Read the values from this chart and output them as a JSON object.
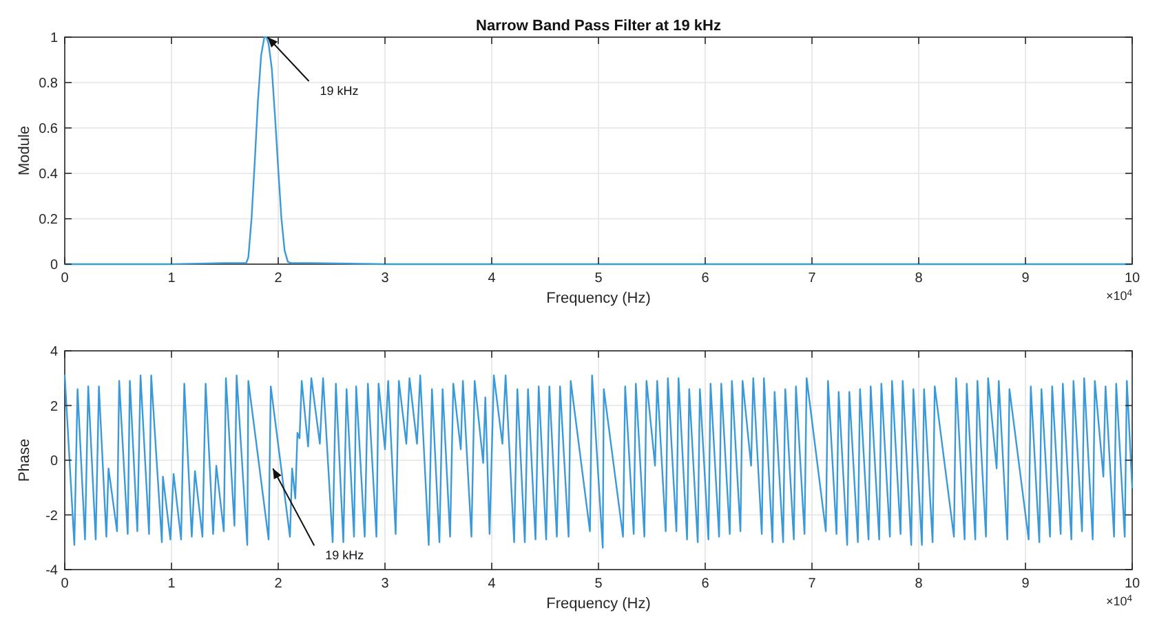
{
  "chart_data": [
    {
      "type": "line",
      "title": "Narrow Band Pass Filter at 19 kHz",
      "xlabel": "Frequency (Hz)",
      "ylabel": "Module",
      "x": [
        0,
        0.5,
        1,
        1.5,
        1.7,
        1.72,
        1.75,
        1.78,
        1.81,
        1.84,
        1.87,
        1.89,
        1.91,
        1.94,
        1.97,
        2.0,
        2.03,
        2.06,
        2.09,
        2.12,
        2.3,
        3,
        4,
        5,
        6,
        7,
        8,
        9,
        10
      ],
      "series": [
        {
          "color": "#3a9ad9",
          "values": [
            0,
            0,
            0,
            0.005,
            0.005,
            0.03,
            0.2,
            0.45,
            0.72,
            0.92,
            1.0,
            1.0,
            0.97,
            0.86,
            0.65,
            0.42,
            0.2,
            0.06,
            0.01,
            0.005,
            0.005,
            0,
            0,
            0,
            0,
            0,
            0,
            0,
            0
          ]
        }
      ],
      "xlim": [
        0,
        10
      ],
      "xticks": [
        0,
        1,
        2,
        3,
        4,
        5,
        6,
        7,
        8,
        9,
        10
      ],
      "ylim": [
        0,
        1
      ],
      "yticks": [
        0,
        0.2,
        0.4,
        0.6,
        0.8,
        1
      ],
      "grid": true,
      "line_style": "solid",
      "annotations": [
        {
          "text": "19 kHz",
          "x": 1.9,
          "y": 1
        },
        "×10$^{4}$"
      ]
    },
    {
      "type": "line",
      "xlabel": "Frequency (Hz)",
      "ylabel": "Phase",
      "x": [
        0,
        0.09,
        0.12,
        0.19,
        0.22,
        0.29,
        0.32,
        0.39,
        0.41,
        0.49,
        0.51,
        0.59,
        0.61,
        0.68,
        0.71,
        0.79,
        0.81,
        0.91,
        0.92,
        0.99,
        1.02,
        1.09,
        1.12,
        1.19,
        1.22,
        1.29,
        1.32,
        1.39,
        1.42,
        1.49,
        1.51,
        1.59,
        1.61,
        1.71,
        1.72,
        1.91,
        1.93,
        2.11,
        2.13,
        2.16,
        2.18,
        2.2,
        2.22,
        2.28,
        2.31,
        2.39,
        2.42,
        2.51,
        2.54,
        2.61,
        2.64,
        2.71,
        2.73,
        2.81,
        2.84,
        2.92,
        2.94,
        3.0,
        3.03,
        3.1,
        3.13,
        3.2,
        3.23,
        3.3,
        3.33,
        3.41,
        3.44,
        3.51,
        3.54,
        3.61,
        3.64,
        3.71,
        3.73,
        3.81,
        3.84,
        3.92,
        3.94,
        3.98,
        4.02,
        4.1,
        4.13,
        4.21,
        4.24,
        4.31,
        4.34,
        4.41,
        4.44,
        4.51,
        4.54,
        4.61,
        4.64,
        4.72,
        4.74,
        4.92,
        4.94,
        5.04,
        5.05,
        5.23,
        5.25,
        5.33,
        5.35,
        5.43,
        5.45,
        5.53,
        5.55,
        5.63,
        5.65,
        5.73,
        5.75,
        5.83,
        5.85,
        5.93,
        5.95,
        6.03,
        6.05,
        6.13,
        6.15,
        6.23,
        6.25,
        6.33,
        6.35,
        6.43,
        6.45,
        6.53,
        6.55,
        6.63,
        6.65,
        6.73,
        6.75,
        6.83,
        6.85,
        6.93,
        6.95,
        7.13,
        7.15,
        7.23,
        7.25,
        7.33,
        7.35,
        7.43,
        7.45,
        7.53,
        7.55,
        7.63,
        7.65,
        7.73,
        7.75,
        7.83,
        7.85,
        7.93,
        7.95,
        8.03,
        8.05,
        8.13,
        8.15,
        8.33,
        8.35,
        8.43,
        8.45,
        8.53,
        8.55,
        8.63,
        8.65,
        8.73,
        8.75,
        8.83,
        8.85,
        9.03,
        9.05,
        9.13,
        9.15,
        9.23,
        9.25,
        9.33,
        9.35,
        9.43,
        9.45,
        9.53,
        9.55,
        9.63,
        9.65,
        9.73,
        9.75,
        9.83,
        9.85,
        9.93,
        9.95,
        10
      ],
      "series": [
        {
          "color": "#3a9ad9",
          "values": [
            3.1,
            -3.1,
            2.6,
            -2.9,
            2.7,
            -2.9,
            2.7,
            -2.8,
            -0.3,
            -2.6,
            2.9,
            -2.7,
            2.9,
            -2.6,
            3.1,
            -2.7,
            3.1,
            -3.0,
            -0.6,
            -2.9,
            -0.5,
            -2.9,
            2.8,
            -2.8,
            -0.4,
            -2.8,
            2.8,
            -2.7,
            -0.2,
            -2.6,
            3.0,
            -2.4,
            3.1,
            -3.1,
            2.9,
            -2.9,
            2.7,
            -2.8,
            -0.3,
            -1.4,
            1.0,
            0.8,
            2.9,
            0.5,
            3.0,
            0.6,
            3.0,
            -3.0,
            2.8,
            -3.0,
            2.6,
            -2.8,
            2.7,
            -2.8,
            2.8,
            -2.8,
            2.8,
            0.4,
            2.9,
            -2.7,
            2.9,
            0.6,
            3.0,
            0.6,
            3.1,
            -3.1,
            2.6,
            -3.0,
            2.6,
            -2.8,
            2.8,
            0.4,
            2.9,
            -2.8,
            2.9,
            -0.1,
            2.3,
            -2.7,
            3.1,
            0.6,
            3.1,
            -3.0,
            2.6,
            -3.0,
            2.6,
            -2.9,
            2.7,
            -2.9,
            2.7,
            -2.8,
            2.7,
            -2.8,
            2.9,
            -2.6,
            3.1,
            -3.2,
            2.6,
            -2.8,
            2.7,
            -2.7,
            2.8,
            -2.8,
            2.9,
            -0.2,
            2.9,
            -2.6,
            3.0,
            -2.6,
            3.0,
            -2.9,
            2.6,
            -3.0,
            2.6,
            -2.9,
            2.8,
            -2.8,
            2.8,
            -2.7,
            2.9,
            -2.6,
            2.9,
            -0.2,
            3.0,
            -2.7,
            3.0,
            -3.0,
            2.5,
            -3.0,
            2.6,
            -2.9,
            2.7,
            -2.7,
            3.0,
            -2.6,
            2.9,
            -2.7,
            2.5,
            -3.1,
            2.5,
            -3.0,
            2.6,
            -2.9,
            2.7,
            -2.9,
            2.8,
            -2.8,
            2.9,
            -2.7,
            2.9,
            -3.1,
            2.6,
            -3.1,
            2.6,
            -3.0,
            2.7,
            -2.8,
            3.0,
            -2.9,
            2.8,
            -2.9,
            2.9,
            -2.8,
            3.0,
            -0.3,
            2.9,
            -2.9,
            2.6,
            -2.9,
            2.7,
            -3.0,
            2.6,
            -2.8,
            2.7,
            -2.7,
            2.8,
            -2.9,
            2.9,
            -2.6,
            3.0,
            -2.9,
            2.9,
            -0.6,
            2.7,
            -2.8,
            2.8,
            -2.8,
            2.9,
            -1.0
          ]
        }
      ],
      "xlim": [
        0,
        10
      ],
      "xticks": [
        0,
        1,
        2,
        3,
        4,
        5,
        6,
        7,
        8,
        9,
        10
      ],
      "ylim": [
        -4,
        4
      ],
      "yticks": [
        -4,
        -2,
        0,
        2,
        4
      ],
      "grid": true,
      "line_style": "solid",
      "annotations": [
        {
          "text": "19 kHz",
          "x": 1.95,
          "y": -0.3
        },
        "×10$^{4}$"
      ]
    }
  ]
}
